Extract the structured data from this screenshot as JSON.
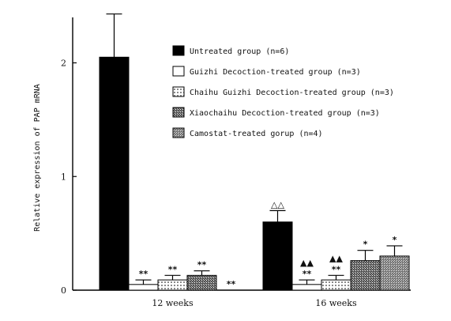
{
  "chart_data": {
    "type": "bar",
    "ylabel": "Relative expression of PAP mRNA",
    "xlabel": "",
    "ylim": [
      0,
      2.4
    ],
    "yticks": [
      0,
      1,
      2
    ],
    "categories": [
      "12 weeks",
      "16 weeks"
    ],
    "grid": false,
    "legend_position": "top-right",
    "series": [
      {
        "name": "Untreated group (n=6)",
        "pattern": "solid-black",
        "values": [
          2.05,
          0.6
        ],
        "errors": [
          0.38,
          0.1
        ],
        "annotations": [
          "",
          "△△"
        ]
      },
      {
        "name": "Guizhi Decoction-treated group (n=3)",
        "pattern": "white",
        "values": [
          0.05,
          0.05
        ],
        "errors": [
          0.04,
          0.04
        ],
        "annotations": [
          "**",
          "▲▲ **"
        ]
      },
      {
        "name": "Chaihu Guizhi Decoction-treated group (n=3)",
        "pattern": "light-hatch",
        "values": [
          0.09,
          0.09
        ],
        "errors": [
          0.04,
          0.04
        ],
        "annotations": [
          "**",
          "▲▲ **"
        ]
      },
      {
        "name": "Xiaochaihu Decoction-treated group (n=3)",
        "pattern": "dense-hatch",
        "values": [
          0.13,
          0.26
        ],
        "errors": [
          0.04,
          0.09
        ],
        "annotations": [
          "**",
          "*"
        ]
      },
      {
        "name": "Camostat-treated gorup (n=4)",
        "pattern": "medium-hatch",
        "values": [
          0.0,
          0.3
        ],
        "errors": [
          0.0,
          0.09
        ],
        "annotations": [
          "**",
          "*"
        ]
      }
    ]
  }
}
